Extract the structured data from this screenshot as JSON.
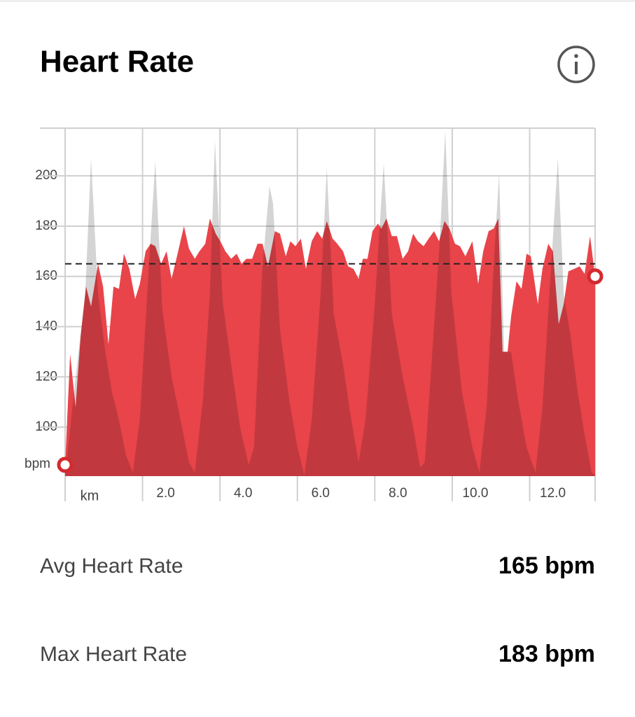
{
  "header": {
    "title": "Heart Rate"
  },
  "chart_data": {
    "type": "area",
    "xlabel": "km",
    "ylabel": "bpm",
    "xlim": [
      0,
      13.69
    ],
    "ylim": [
      80.5,
      219
    ],
    "xticks": [
      {
        "value": 2,
        "label": "2.0"
      },
      {
        "value": 4,
        "label": "4.0"
      },
      {
        "value": 6,
        "label": "6.0"
      },
      {
        "value": 8,
        "label": "8.0"
      },
      {
        "value": 10,
        "label": "10.0"
      },
      {
        "value": 12,
        "label": "12.0"
      }
    ],
    "yticks": [
      100,
      120,
      140,
      160,
      180,
      200
    ],
    "grid": true,
    "reference_line": 165,
    "series": [
      {
        "color": "#e8444a",
        "x": [
          0,
          0.13,
          0.27,
          0.4,
          0.54,
          0.67,
          0.85,
          0.98,
          1.12,
          1.25,
          1.39,
          1.52,
          1.66,
          1.81,
          1.93,
          2.08,
          2.21,
          2.33,
          2.48,
          2.62,
          2.75,
          2.89,
          3.07,
          3.2,
          3.35,
          3.47,
          3.62,
          3.74,
          3.89,
          4.01,
          4.14,
          4.29,
          4.43,
          4.56,
          4.68,
          4.83,
          4.97,
          5.1,
          5.24,
          5.42,
          5.55,
          5.7,
          5.82,
          5.95,
          6.09,
          6.22,
          6.37,
          6.51,
          6.64,
          6.76,
          6.91,
          7.03,
          7.18,
          7.31,
          7.45,
          7.58,
          7.69,
          7.81,
          7.94,
          8.08,
          8.17,
          8.3,
          8.44,
          8.57,
          8.72,
          8.86,
          8.99,
          9.11,
          9.26,
          9.39,
          9.53,
          9.66,
          9.8,
          9.93,
          10.07,
          10.2,
          10.34,
          10.52,
          10.67,
          10.8,
          10.94,
          11.07,
          11.19,
          11.3,
          11.43,
          11.52,
          11.66,
          11.79,
          11.92,
          12.03,
          12.21,
          12.33,
          12.48,
          12.6,
          12.75,
          12.88,
          13.0,
          13.15,
          13.29,
          13.42,
          13.56,
          13.69
        ],
        "values": [
          85,
          129,
          108,
          136,
          156,
          148,
          165,
          156,
          133,
          156,
          155,
          169,
          163,
          151,
          157,
          170,
          173,
          172,
          165,
          170,
          159,
          168,
          180,
          171,
          167,
          170,
          173,
          183,
          177,
          174,
          170,
          167,
          169,
          165,
          167,
          167,
          173,
          173,
          164,
          178,
          177,
          168,
          174,
          172,
          175,
          163,
          174,
          178,
          175,
          182,
          175,
          173,
          170,
          164,
          163,
          159,
          167,
          167,
          178,
          181,
          179,
          183,
          176,
          176,
          167,
          170,
          177,
          174,
          172,
          175,
          178,
          174,
          182,
          179,
          173,
          172,
          168,
          174,
          157,
          170,
          178,
          179,
          183,
          130,
          130,
          144,
          158,
          155,
          169,
          168,
          149,
          163,
          173,
          170,
          141,
          149,
          162,
          163,
          164,
          161,
          176,
          160
        ]
      },
      {
        "color": "#d4d4d4",
        "x": [
          0,
          0.31,
          0.52,
          0.67,
          0.85,
          1.03,
          1.21,
          1.39,
          1.57,
          1.75,
          1.93,
          2.12,
          2.33,
          2.51,
          2.75,
          2.98,
          3.2,
          3.35,
          3.56,
          3.74,
          3.87,
          4.07,
          4.29,
          4.52,
          4.74,
          4.88,
          5.1,
          5.28,
          5.37,
          5.55,
          5.79,
          6.0,
          6.18,
          6.37,
          6.6,
          6.76,
          6.94,
          7.18,
          7.36,
          7.58,
          7.76,
          7.99,
          8.23,
          8.44,
          8.72,
          8.99,
          9.17,
          9.29,
          9.49,
          9.67,
          9.82,
          9.98,
          10.25,
          10.52,
          10.7,
          10.89,
          11.07,
          11.21,
          11.34,
          11.52,
          11.7,
          11.92,
          12.15,
          12.33,
          12.51,
          12.73,
          12.88,
          13.06,
          13.24,
          13.42,
          13.6,
          13.69
        ],
        "values": [
          81,
          125,
          153,
          207,
          153,
          131,
          114,
          103,
          89,
          82,
          103,
          153,
          206,
          147,
          120,
          103,
          86,
          82,
          111,
          153,
          214,
          150,
          125,
          100,
          85,
          92,
          164,
          196,
          189,
          139,
          111,
          92,
          81,
          103,
          153,
          203,
          145,
          125,
          106,
          86,
          103,
          147,
          205,
          145,
          120,
          100,
          84,
          86,
          131,
          172,
          218,
          153,
          114,
          92,
          82,
          108,
          164,
          201,
          130,
          130,
          111,
          92,
          82,
          108,
          153,
          207,
          153,
          136,
          114,
          97,
          82,
          81
        ]
      }
    ]
  },
  "stats": [
    {
      "label": "Avg Heart Rate",
      "value": "165 bpm"
    },
    {
      "label": "Max Heart Rate",
      "value": "183 bpm"
    }
  ]
}
